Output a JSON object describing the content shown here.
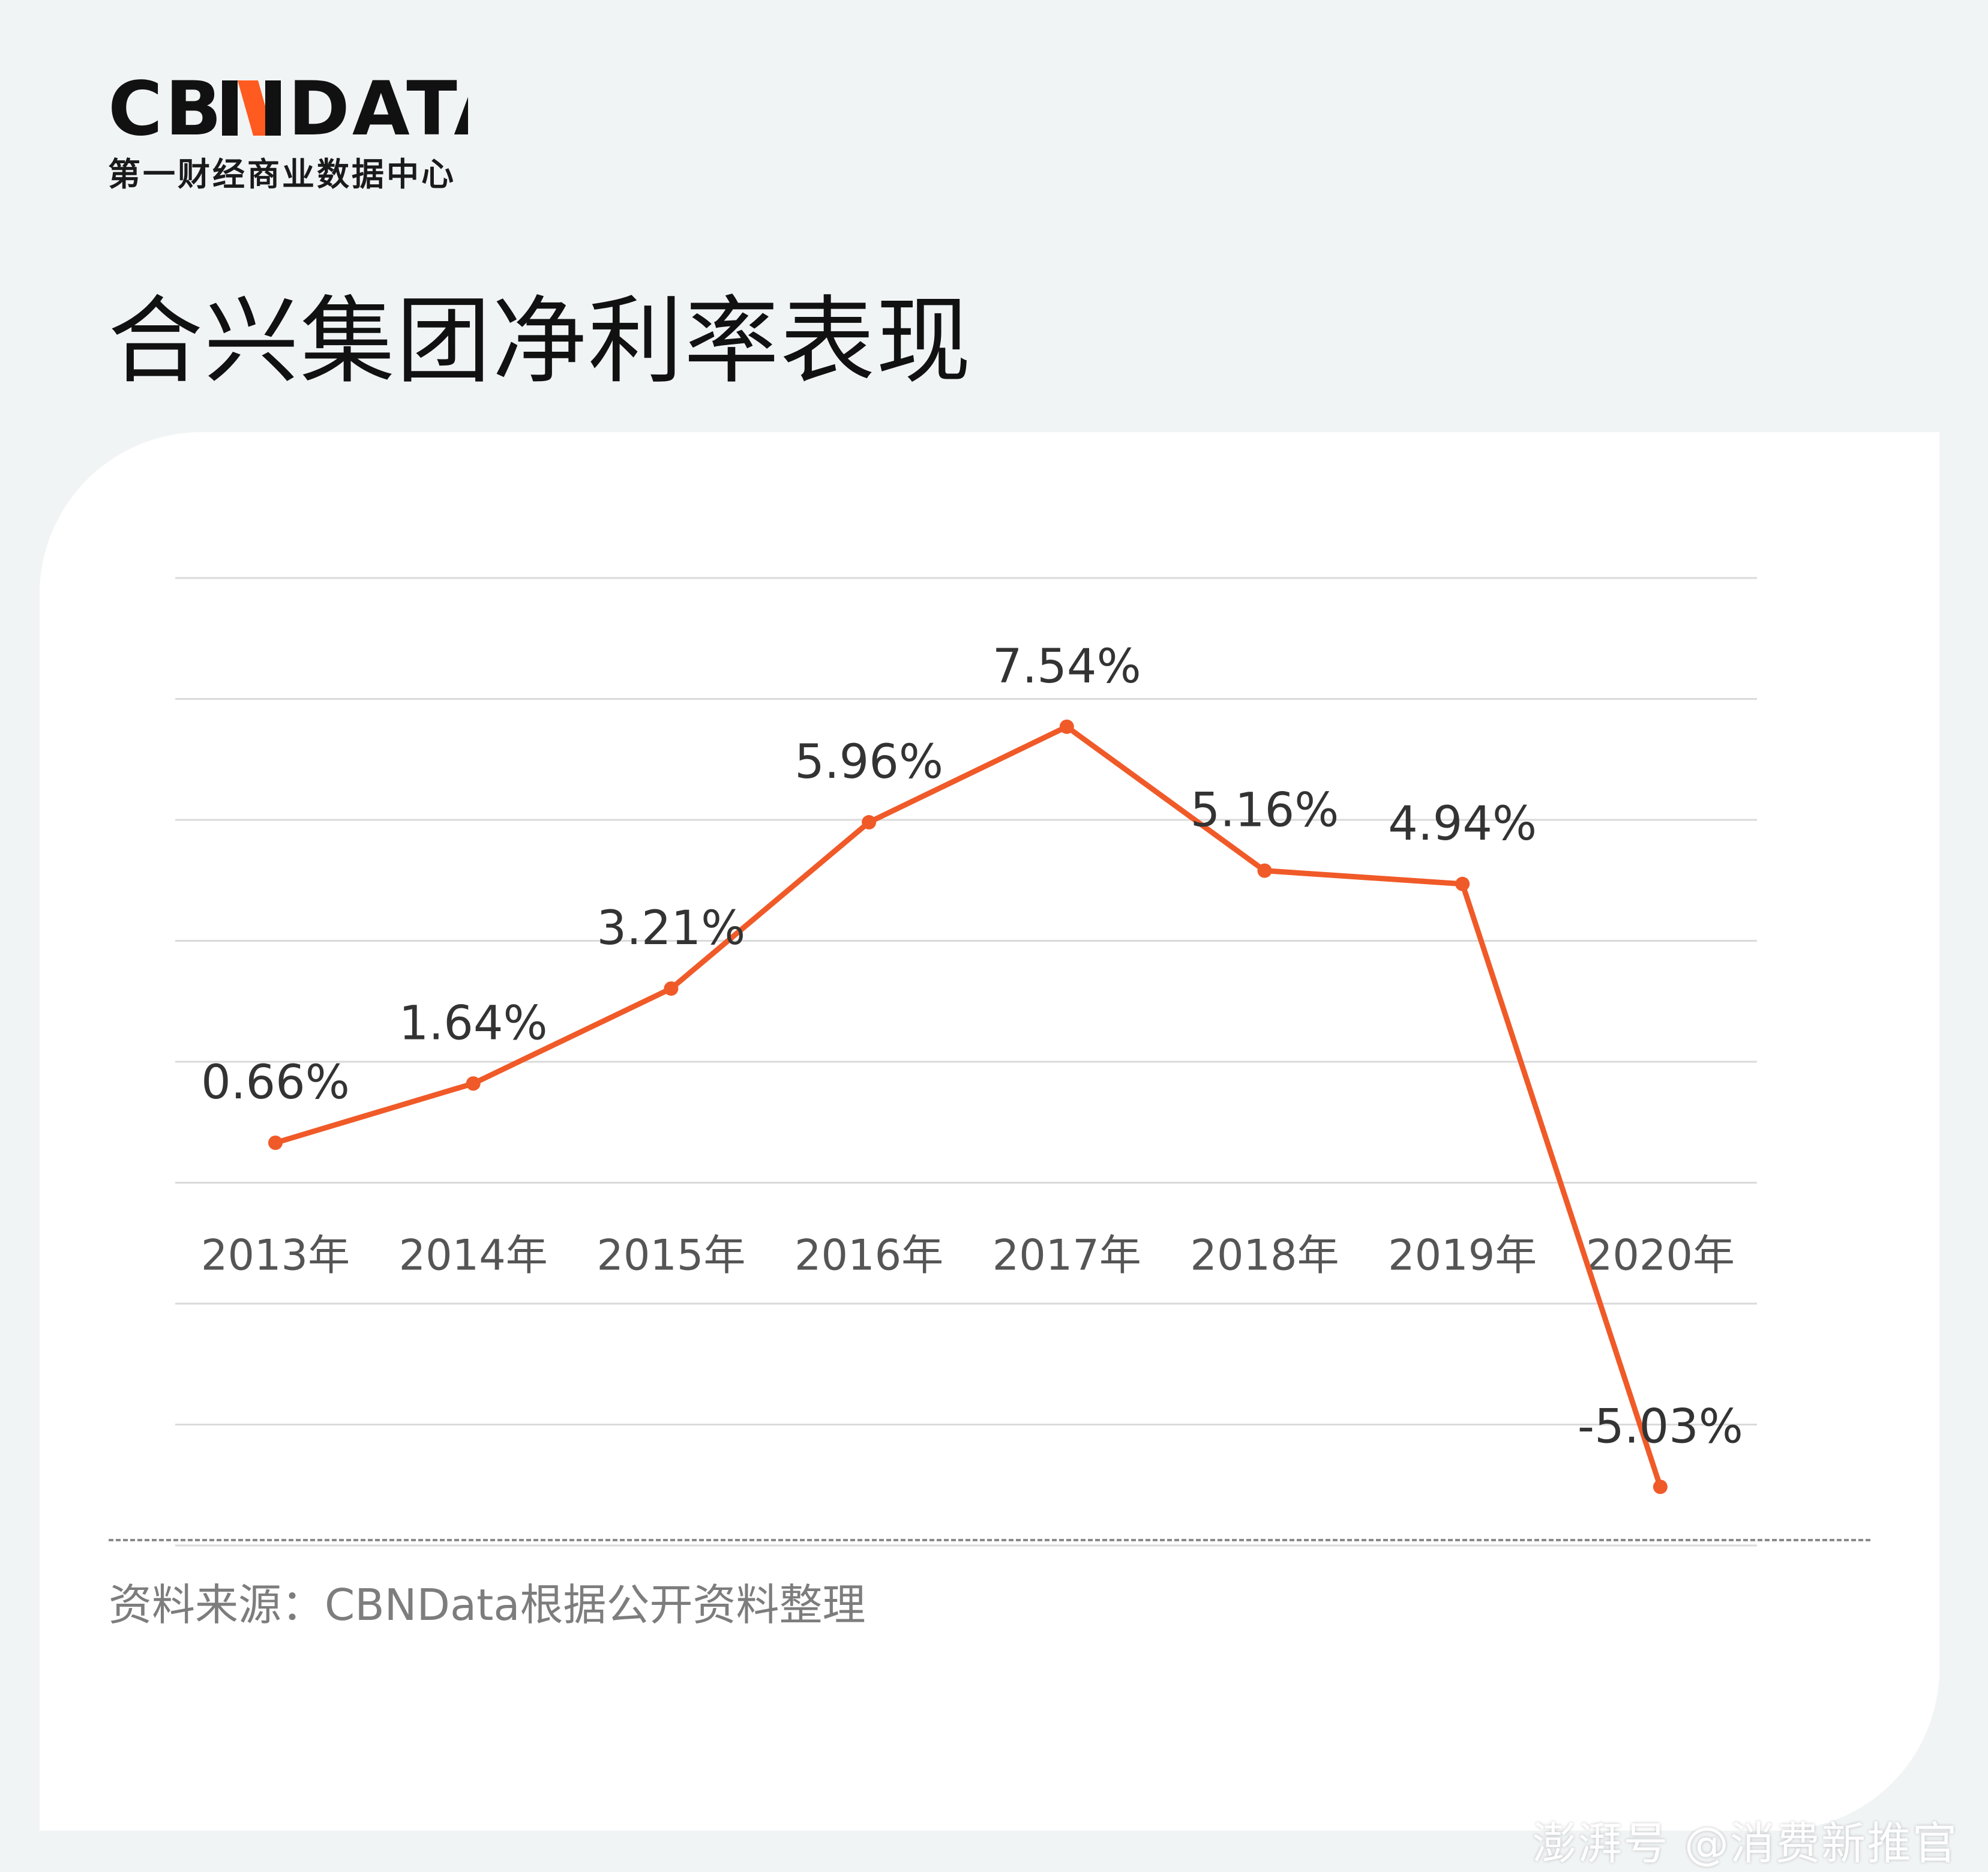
{
  "brand": {
    "logo_text": "CBNDATA",
    "tagline": "第一财经商业数据中心",
    "accent_color": "#ff5a1f"
  },
  "page": {
    "title": "合兴集团净利率表现"
  },
  "chart_data": {
    "type": "line",
    "title": "合兴集团净利率表现",
    "categories": [
      "2013年",
      "2014年",
      "2015年",
      "2016年",
      "2017年",
      "2018年",
      "2019年",
      "2020年"
    ],
    "series": [
      {
        "values": [
          0.66,
          1.64,
          3.21,
          5.96,
          7.54,
          5.16,
          4.94,
          -5.03
        ],
        "color": "#f05a28"
      }
    ],
    "data_labels": [
      "0.66%",
      "1.64%",
      "3.21%",
      "5.96%",
      "7.54%",
      "5.16%",
      "4.94%",
      "-5.03%"
    ],
    "unit": "%",
    "ylim": [
      -6,
      10
    ],
    "grid": true,
    "legend": "none",
    "xlabel": "",
    "ylabel": ""
  },
  "footer": {
    "source": "资料来源：CBNData根据公开资料整理",
    "watermark": "澎湃号 @消费新推官"
  }
}
